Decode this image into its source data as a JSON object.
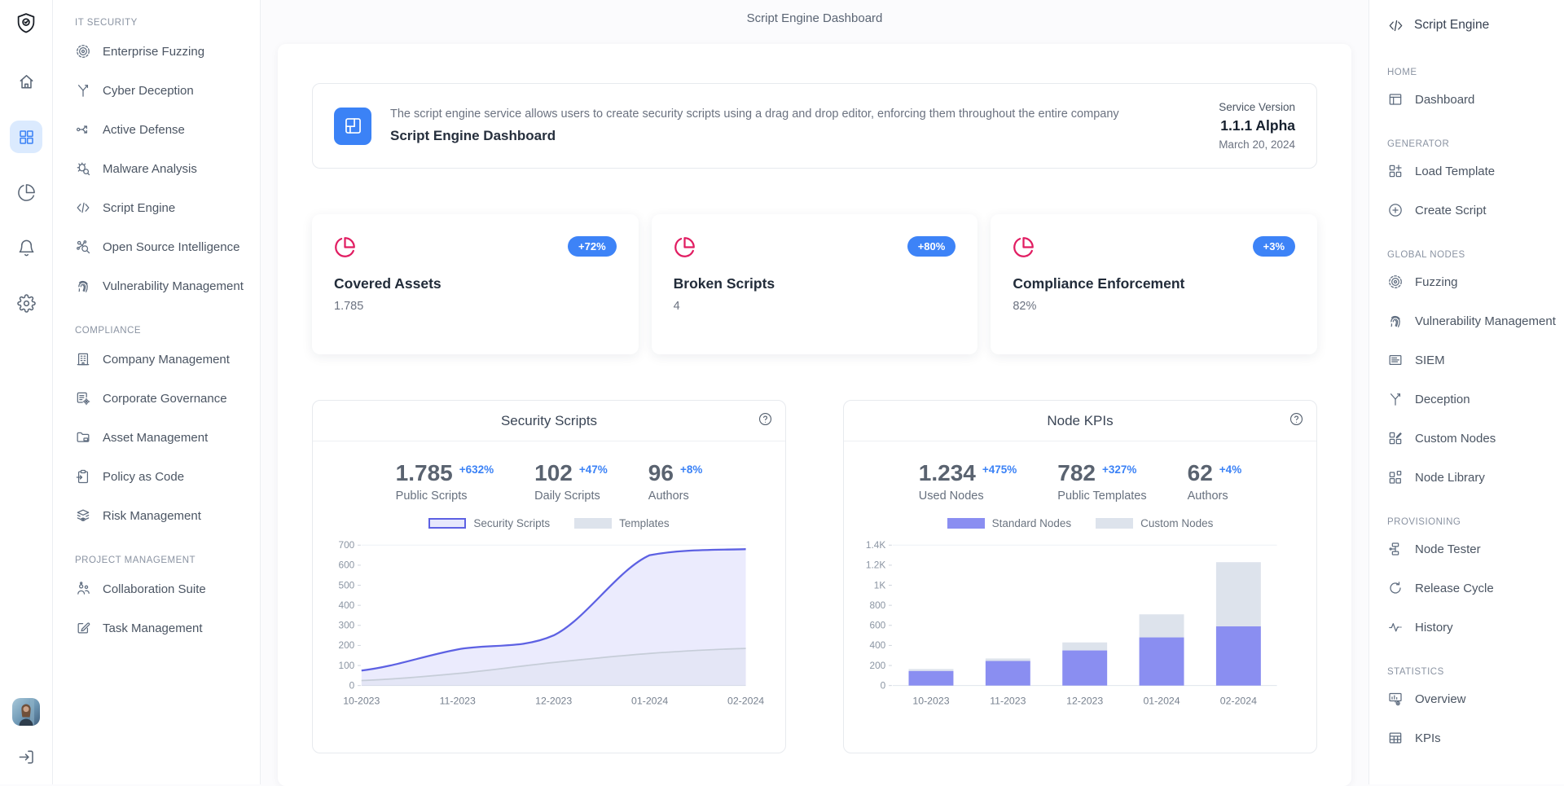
{
  "app": {
    "top_title": "Script Engine Dashboard"
  },
  "rail": {
    "logo_icon": "shield-logo",
    "items": [
      {
        "name": "home",
        "icon": "home",
        "active": false
      },
      {
        "name": "apps",
        "icon": "apps",
        "active": true
      },
      {
        "name": "analytics",
        "icon": "pie",
        "active": false
      },
      {
        "name": "notifications",
        "icon": "bell",
        "active": false
      },
      {
        "name": "settings",
        "icon": "gear",
        "active": false
      }
    ],
    "logout_icon": "logout"
  },
  "sidebar": {
    "sections": [
      {
        "label": "IT SECURITY",
        "items": [
          {
            "icon": "target",
            "label": "Enterprise Fuzzing"
          },
          {
            "icon": "split",
            "label": "Cyber Deception"
          },
          {
            "icon": "route",
            "label": "Active Defense"
          },
          {
            "icon": "bug-search",
            "label": "Malware Analysis"
          },
          {
            "icon": "code",
            "label": "Script Engine"
          },
          {
            "icon": "network-search",
            "label": "Open Source Intelligence"
          },
          {
            "icon": "fingerprint",
            "label": "Vulnerability Management"
          }
        ]
      },
      {
        "label": "COMPLIANCE",
        "items": [
          {
            "icon": "building",
            "label": "Company Management"
          },
          {
            "icon": "doc-gear",
            "label": "Corporate Governance"
          },
          {
            "icon": "folder",
            "label": "Asset Management"
          },
          {
            "icon": "clipboard-arrow",
            "label": "Policy as Code"
          },
          {
            "icon": "layers-eye",
            "label": "Risk Management"
          }
        ]
      },
      {
        "label": "PROJECT MANAGEMENT",
        "items": [
          {
            "icon": "users",
            "label": "Collaboration Suite"
          },
          {
            "icon": "edit-square",
            "label": "Task Management"
          }
        ]
      }
    ]
  },
  "right_sidebar": {
    "title": "Script Engine",
    "title_icon": "code",
    "sections": [
      {
        "label": "HOME",
        "items": [
          {
            "icon": "window",
            "label": "Dashboard"
          }
        ]
      },
      {
        "label": "GENERATOR",
        "items": [
          {
            "icon": "grid-plus",
            "label": "Load Template"
          },
          {
            "icon": "circle-plus",
            "label": "Create Script"
          }
        ]
      },
      {
        "label": "GLOBAL NODES",
        "items": [
          {
            "icon": "target",
            "label": "Fuzzing"
          },
          {
            "icon": "fingerprint",
            "label": "Vulnerability Management"
          },
          {
            "icon": "card-lines",
            "label": "SIEM"
          },
          {
            "icon": "split",
            "label": "Deception"
          },
          {
            "icon": "grid-pencil",
            "label": "Custom Nodes"
          },
          {
            "icon": "grid-extra",
            "label": "Node Library"
          }
        ]
      },
      {
        "label": "PROVISIONING",
        "items": [
          {
            "icon": "hierarchy",
            "label": "Node Tester"
          },
          {
            "icon": "refresh",
            "label": "Release Cycle"
          },
          {
            "icon": "activity",
            "label": "History"
          }
        ]
      },
      {
        "label": "STATISTICS",
        "items": [
          {
            "icon": "presentation",
            "label": "Overview"
          },
          {
            "icon": "table",
            "label": "KPIs"
          }
        ]
      }
    ]
  },
  "header_card": {
    "icon": "layout",
    "description": "The script engine service allows users to create security scripts using a drag and drop editor, enforcing them throughout the entire company",
    "title": "Script Engine Dashboard",
    "version_label": "Service Version",
    "version": "1.1.1 Alpha",
    "date": "March 20, 2024"
  },
  "stat_cards": [
    {
      "icon": "pie",
      "title": "Covered Assets",
      "value": "1.785",
      "badge": "+72%"
    },
    {
      "icon": "pie",
      "title": "Broken Scripts",
      "value": "4",
      "badge": "+80%"
    },
    {
      "icon": "pie",
      "title": "Compliance Enforcement",
      "value": "82%",
      "badge": "+3%"
    }
  ],
  "colors": {
    "accent_blue": "#3b82f6",
    "badge_blue": "#3d83f7",
    "pink": "#e11d62",
    "indigo_line": "#5d61e3",
    "bar_indigo": "#8a8ef1",
    "bar_gray": "#dde3ec"
  },
  "chart_data": [
    {
      "type": "area",
      "title": "Security Scripts",
      "help_icon": "help",
      "kpis": [
        {
          "value": "1.785",
          "delta": "+632%",
          "label": "Public Scripts"
        },
        {
          "value": "102",
          "delta": "+47%",
          "label": "Daily Scripts"
        },
        {
          "value": "96",
          "delta": "+8%",
          "label": "Authors"
        }
      ],
      "categories": [
        "10-2023",
        "11-2023",
        "12-2023",
        "01-2024",
        "02-2024"
      ],
      "series": [
        {
          "name": "Security Scripts",
          "values": [
            75,
            180,
            250,
            650,
            680
          ],
          "color": "#5d61e3",
          "fill": "rgba(99,102,241,0.13)",
          "legend_swatch": {
            "fill": "#e7e8fc",
            "border": "#5d61e3"
          }
        },
        {
          "name": "Templates",
          "values": [
            25,
            60,
            115,
            160,
            185
          ],
          "color": "#c6cdd8",
          "fill": "rgba(203,213,225,0.22)",
          "legend_swatch": {
            "fill": "#dde3ec",
            "border": "#dde3ec"
          }
        }
      ],
      "ylim": [
        0,
        700
      ],
      "yticks": [
        "0",
        "100",
        "200",
        "300",
        "400",
        "500",
        "600",
        "700"
      ],
      "ytick_values": [
        0,
        100,
        200,
        300,
        400,
        500,
        600,
        700
      ],
      "legend_position": "top",
      "grid": false
    },
    {
      "type": "stacked-bar",
      "title": "Node KPIs",
      "help_icon": "help",
      "kpis": [
        {
          "value": "1.234",
          "delta": "+475%",
          "label": "Used Nodes"
        },
        {
          "value": "782",
          "delta": "+327%",
          "label": "Public Templates"
        },
        {
          "value": "62",
          "delta": "+4%",
          "label": "Authors"
        }
      ],
      "categories": [
        "10-2023",
        "11-2023",
        "12-2023",
        "01-2024",
        "02-2024"
      ],
      "series": [
        {
          "name": "Standard Nodes",
          "values": [
            145,
            245,
            350,
            480,
            590
          ],
          "color": "#8a8ef1",
          "legend_swatch": {
            "fill": "#8a8ef1",
            "border": "#8a8ef1"
          }
        },
        {
          "name": "Custom Nodes",
          "values": [
            20,
            25,
            80,
            230,
            640
          ],
          "color": "#dde3ec",
          "legend_swatch": {
            "fill": "#dde3ec",
            "border": "#dde3ec"
          }
        }
      ],
      "ylim": [
        0,
        1400
      ],
      "yticks": [
        "0",
        "200",
        "400",
        "600",
        "800",
        "1K",
        "1.2K",
        "1.4K"
      ],
      "ytick_values": [
        0,
        200,
        400,
        600,
        800,
        1000,
        1200,
        1400
      ],
      "legend_position": "top",
      "grid": false
    }
  ]
}
